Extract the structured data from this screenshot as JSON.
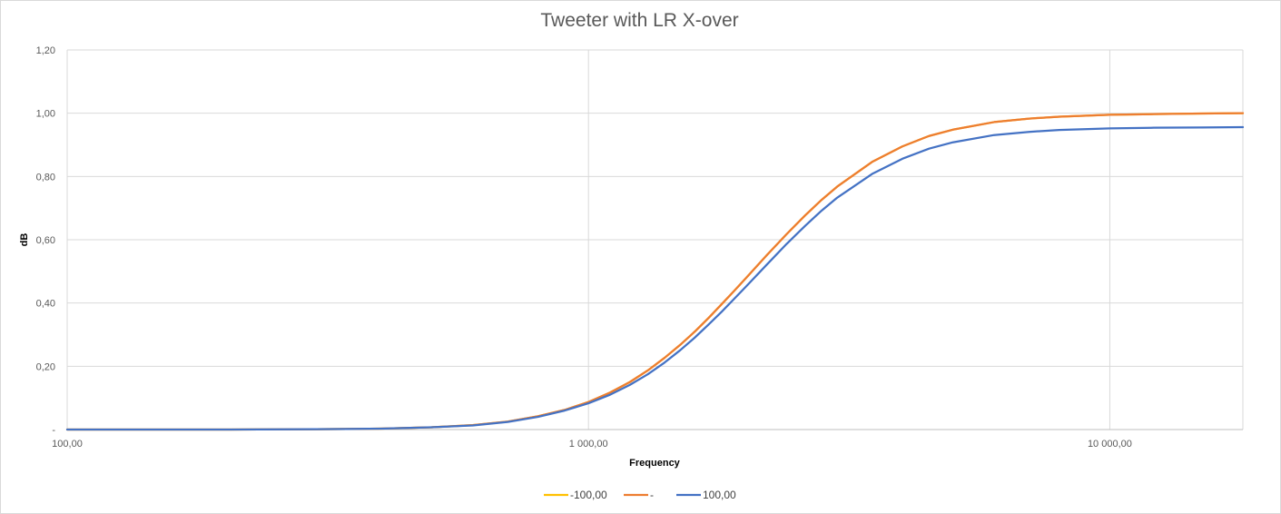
{
  "chart_data": {
    "type": "line",
    "title": "Tweeter with LR X-over",
    "xlabel": "Frequency",
    "ylabel": "dB",
    "x_scale": "log",
    "xlim": [
      100,
      18000
    ],
    "ylim": [
      0,
      1.2
    ],
    "x_ticks": [
      {
        "value": 100,
        "label": "100,00"
      },
      {
        "value": 1000,
        "label": "1 000,00"
      },
      {
        "value": 10000,
        "label": "10 000,00"
      }
    ],
    "y_ticks": [
      {
        "value": 0,
        "label": "-"
      },
      {
        "value": 0.2,
        "label": "0,20"
      },
      {
        "value": 0.4,
        "label": "0,40"
      },
      {
        "value": 0.6,
        "label": "0,60"
      },
      {
        "value": 0.8,
        "label": "0,80"
      },
      {
        "value": 1.0,
        "label": "1,00"
      },
      {
        "value": 1.2,
        "label": "1,20"
      }
    ],
    "grid": true,
    "legend_position": "bottom",
    "x": [
      100,
      200,
      300,
      400,
      500,
      600,
      700,
      800,
      900,
      1000,
      1100,
      1200,
      1300,
      1400,
      1500,
      1600,
      1700,
      1800,
      1900,
      2000,
      2200,
      2400,
      2600,
      2800,
      3000,
      3500,
      4000,
      4500,
      5000,
      6000,
      7000,
      8000,
      10000,
      12000,
      15000,
      18000
    ],
    "series": [
      {
        "name": "-100,00",
        "color": "#ffc000",
        "values": [
          0.0,
          0.0,
          0.001,
          0.003,
          0.007,
          0.014,
          0.025,
          0.042,
          0.062,
          0.087,
          0.117,
          0.15,
          0.187,
          0.227,
          0.268,
          0.31,
          0.353,
          0.396,
          0.437,
          0.477,
          0.552,
          0.618,
          0.676,
          0.726,
          0.768,
          0.846,
          0.895,
          0.928,
          0.948,
          0.972,
          0.983,
          0.989,
          0.995,
          0.997,
          0.999,
          1.0
        ]
      },
      {
        "name": "-",
        "color": "#ed7d31",
        "values": [
          0.0,
          0.0,
          0.001,
          0.003,
          0.007,
          0.014,
          0.025,
          0.042,
          0.062,
          0.087,
          0.117,
          0.15,
          0.187,
          0.227,
          0.268,
          0.31,
          0.353,
          0.396,
          0.437,
          0.477,
          0.552,
          0.618,
          0.676,
          0.726,
          0.768,
          0.846,
          0.895,
          0.928,
          0.948,
          0.972,
          0.983,
          0.989,
          0.995,
          0.997,
          0.999,
          1.0
        ]
      },
      {
        "name": "100,00",
        "color": "#4472c4",
        "values": [
          0.0,
          0.0,
          0.001,
          0.003,
          0.007,
          0.013,
          0.024,
          0.04,
          0.06,
          0.083,
          0.11,
          0.141,
          0.175,
          0.212,
          0.251,
          0.291,
          0.332,
          0.372,
          0.412,
          0.45,
          0.522,
          0.587,
          0.643,
          0.692,
          0.733,
          0.808,
          0.856,
          0.888,
          0.908,
          0.931,
          0.941,
          0.947,
          0.952,
          0.954,
          0.955,
          0.956
        ]
      }
    ]
  }
}
